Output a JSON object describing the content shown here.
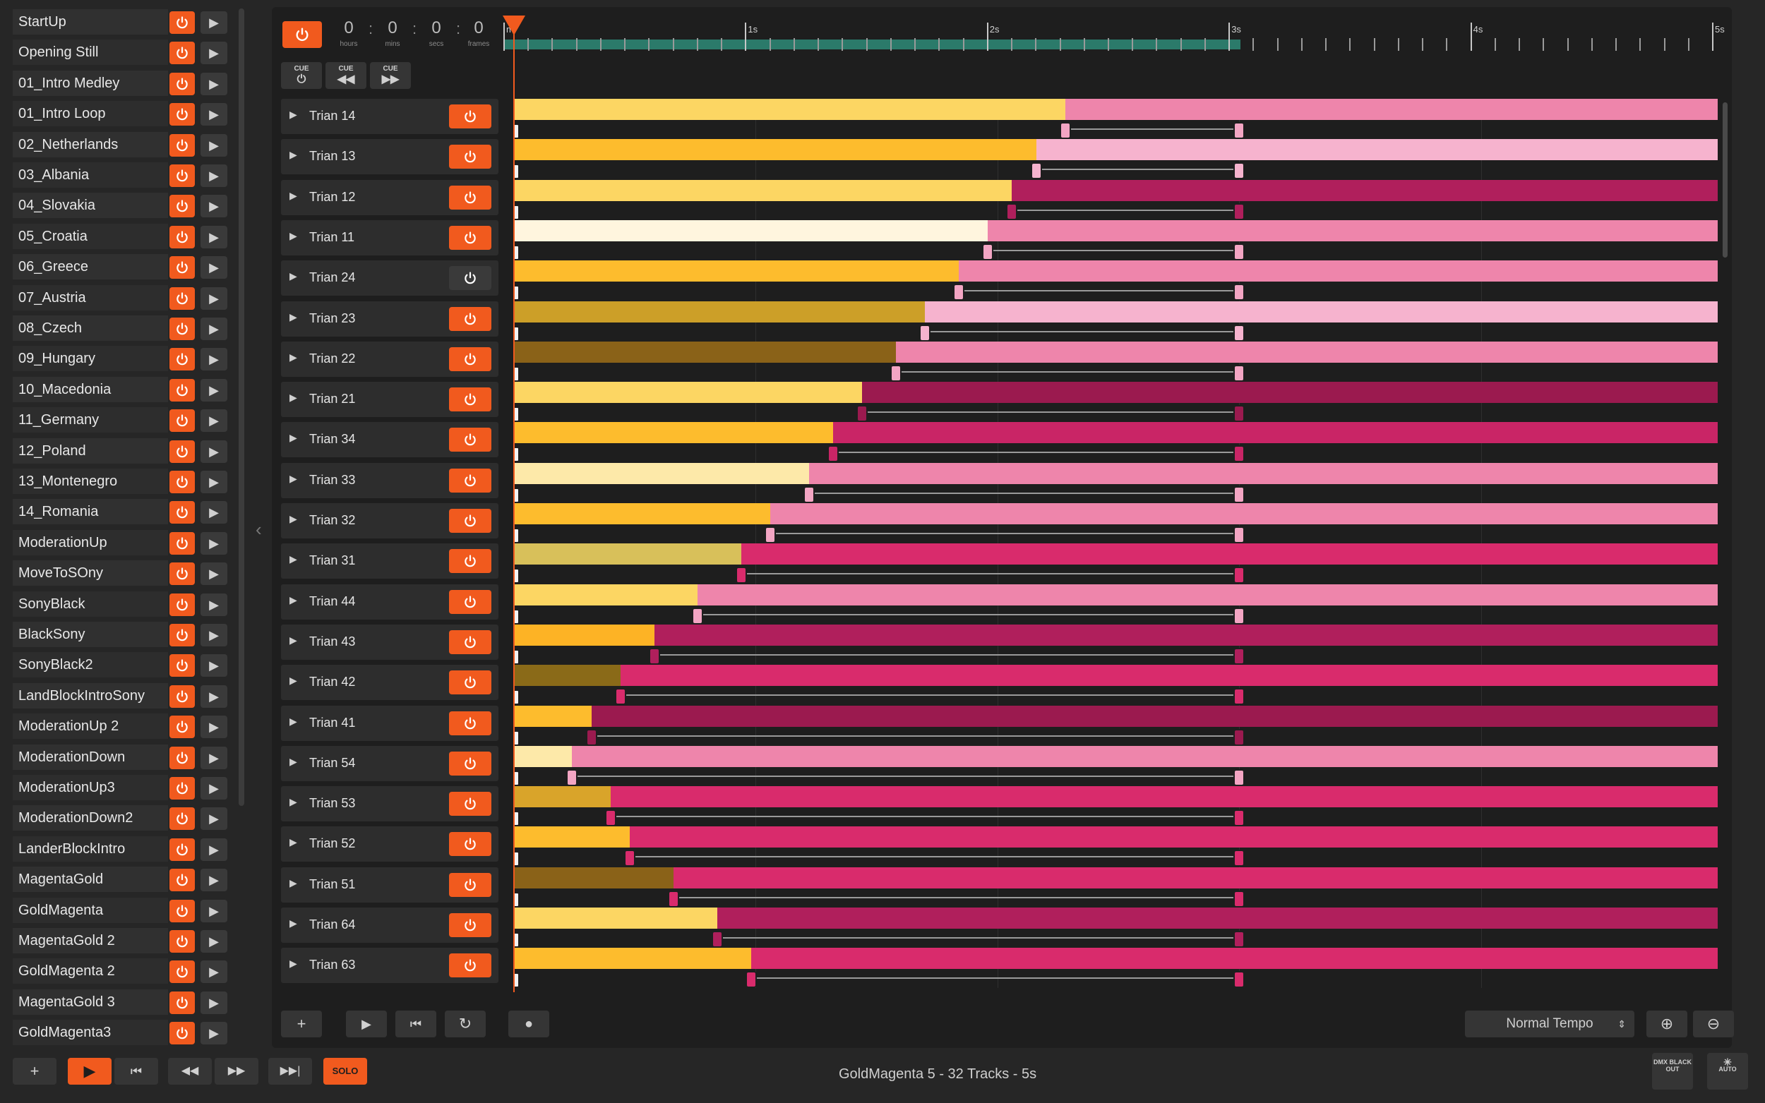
{
  "cues": [
    {
      "name": "StartUp"
    },
    {
      "name": "Opening Still"
    },
    {
      "name": "01_Intro Medley"
    },
    {
      "name": "01_Intro Loop"
    },
    {
      "name": "02_Netherlands"
    },
    {
      "name": "03_Albania"
    },
    {
      "name": "04_Slovakia"
    },
    {
      "name": "05_Croatia"
    },
    {
      "name": "06_Greece"
    },
    {
      "name": "07_Austria"
    },
    {
      "name": "08_Czech"
    },
    {
      "name": "09_Hungary"
    },
    {
      "name": "10_Macedonia"
    },
    {
      "name": "11_Germany"
    },
    {
      "name": "12_Poland"
    },
    {
      "name": "13_Montenegro"
    },
    {
      "name": "14_Romania"
    },
    {
      "name": "ModerationUp"
    },
    {
      "name": "MoveToSOny"
    },
    {
      "name": "SonyBlack"
    },
    {
      "name": "BlackSony"
    },
    {
      "name": "SonyBlack2"
    },
    {
      "name": "LandBlockIntroSony"
    },
    {
      "name": "ModerationUp 2"
    },
    {
      "name": "ModerationDown"
    },
    {
      "name": "ModerationUp3"
    },
    {
      "name": "ModerationDown2"
    },
    {
      "name": "LanderBlockIntro"
    },
    {
      "name": "MagentaGold"
    },
    {
      "name": "GoldMagenta"
    },
    {
      "name": "MagentaGold 2"
    },
    {
      "name": "GoldMagenta 2"
    },
    {
      "name": "MagentaGold 3"
    },
    {
      "name": "GoldMagenta3"
    }
  ],
  "timecode": {
    "hours": "0",
    "mins": "0",
    "secs": "0",
    "frames": "0",
    "hours_label": "hours",
    "mins_label": "mins",
    "secs_label": "secs",
    "frames_label": "frames",
    "sep": ":"
  },
  "cue_buttons": [
    {
      "label": "CUE",
      "symbol": "⏻"
    },
    {
      "label": "CUE",
      "symbol": "◀◀"
    },
    {
      "label": "CUE",
      "symbol": "▶▶"
    }
  ],
  "ruler": {
    "labels": [
      "m",
      "1s",
      "2s",
      "3s",
      "4s",
      "5s"
    ],
    "duration_s": 5,
    "progress_s": 3.05
  },
  "colors": {
    "accent": "#f15a1e",
    "progress": "#2b7a6a"
  },
  "tracks": [
    {
      "name": "Trian 14",
      "on": true,
      "split_s": 2.28,
      "end_s": 3.0,
      "gold": "#fcd663",
      "pink": "#ee85ab",
      "handle": "#f3a5c3"
    },
    {
      "name": "Trian 13",
      "on": true,
      "split_s": 2.16,
      "end_s": 3.0,
      "gold": "#fdbc2d",
      "pink": "#f6b3ce",
      "handle": "#f6b3ce"
    },
    {
      "name": "Trian 12",
      "on": true,
      "split_s": 2.06,
      "end_s": 3.0,
      "gold": "#fcd663",
      "pink": "#b01f5c",
      "handle": "#b01f5c"
    },
    {
      "name": "Trian 11",
      "on": true,
      "split_s": 1.96,
      "end_s": 3.0,
      "gold": "#fff5de",
      "pink": "#ee85ab",
      "handle": "#f3a5c3"
    },
    {
      "name": "Trian 24",
      "on": false,
      "split_s": 1.84,
      "end_s": 3.0,
      "gold": "#fdbc2d",
      "pink": "#ee85ab",
      "handle": "#f3a5c3"
    },
    {
      "name": "Trian 23",
      "on": true,
      "split_s": 1.7,
      "end_s": 3.0,
      "gold": "#cc9f28",
      "pink": "#f6b3ce",
      "handle": "#f6b3ce"
    },
    {
      "name": "Trian 22",
      "on": true,
      "split_s": 1.58,
      "end_s": 3.0,
      "gold": "#8a6218",
      "pink": "#ee85ab",
      "handle": "#f3a5c3"
    },
    {
      "name": "Trian 21",
      "on": true,
      "split_s": 1.44,
      "end_s": 3.0,
      "gold": "#fcd663",
      "pink": "#9b1a4f",
      "handle": "#9b1a4f"
    },
    {
      "name": "Trian 34",
      "on": true,
      "split_s": 1.32,
      "end_s": 3.0,
      "gold": "#fdbc2d",
      "pink": "#c92566",
      "handle": "#c92566"
    },
    {
      "name": "Trian 33",
      "on": true,
      "split_s": 1.22,
      "end_s": 3.0,
      "gold": "#fde9a9",
      "pink": "#ee85ab",
      "handle": "#f3a5c3"
    },
    {
      "name": "Trian 32",
      "on": true,
      "split_s": 1.06,
      "end_s": 3.0,
      "gold": "#fdbc2d",
      "pink": "#ee85ab",
      "handle": "#f3a5c3"
    },
    {
      "name": "Trian 31",
      "on": true,
      "split_s": 0.94,
      "end_s": 3.0,
      "gold": "#d8c05a",
      "pink": "#d92b6c",
      "handle": "#d92b6c"
    },
    {
      "name": "Trian 44",
      "on": true,
      "split_s": 0.76,
      "end_s": 3.0,
      "gold": "#fcd663",
      "pink": "#ee85ab",
      "handle": "#f3a5c3"
    },
    {
      "name": "Trian 43",
      "on": true,
      "split_s": 0.58,
      "end_s": 3.0,
      "gold": "#fdb325",
      "pink": "#b01f5c",
      "handle": "#b01f5c"
    },
    {
      "name": "Trian 42",
      "on": true,
      "split_s": 0.44,
      "end_s": 3.0,
      "gold": "#8a6a18",
      "pink": "#d92b6c",
      "handle": "#d92b6c"
    },
    {
      "name": "Trian 41",
      "on": true,
      "split_s": 0.32,
      "end_s": 3.0,
      "gold": "#fdbc2d",
      "pink": "#9b1a4f",
      "handle": "#9b1a4f"
    },
    {
      "name": "Trian 54",
      "on": true,
      "split_s": 0.24,
      "end_s": 3.0,
      "gold": "#fde9a9",
      "pink": "#ee85ab",
      "handle": "#f3a5c3"
    },
    {
      "name": "Trian 53",
      "on": true,
      "split_s": 0.4,
      "end_s": 3.0,
      "gold": "#d9a42a",
      "pink": "#d92b6c",
      "handle": "#d92b6c"
    },
    {
      "name": "Trian 52",
      "on": true,
      "split_s": 0.48,
      "end_s": 3.0,
      "gold": "#fdbc2d",
      "pink": "#d92b6c",
      "handle": "#d92b6c"
    },
    {
      "name": "Trian 51",
      "on": true,
      "split_s": 0.66,
      "end_s": 3.0,
      "gold": "#8a6218",
      "pink": "#d92b6c",
      "handle": "#d92b6c"
    },
    {
      "name": "Trian 64",
      "on": true,
      "split_s": 0.84,
      "end_s": 3.0,
      "gold": "#fcd663",
      "pink": "#b01f5c",
      "handle": "#b01f5c"
    },
    {
      "name": "Trian 63",
      "on": true,
      "split_s": 0.98,
      "end_s": 3.0,
      "gold": "#fdbc2d",
      "pink": "#d92b6c",
      "handle": "#d92b6c"
    }
  ],
  "toolbar": {
    "add": "+",
    "play": "▶",
    "rewind": "⏮",
    "loop": "↻",
    "record": "●",
    "tempo": "Normal Tempo",
    "zoom_in": "⊕",
    "zoom_out": "⊖"
  },
  "bottom_bar": {
    "add": "+",
    "play": "▶",
    "to_start": "⏮",
    "prev": "◀◀",
    "next": "▶▶",
    "to_end": "▶▶|",
    "solo": "SOLO",
    "status": "GoldMagenta 5 - 32 Tracks - 5s",
    "blackout_label": "DMX BLACK OUT",
    "auto_label": "AUTO"
  }
}
